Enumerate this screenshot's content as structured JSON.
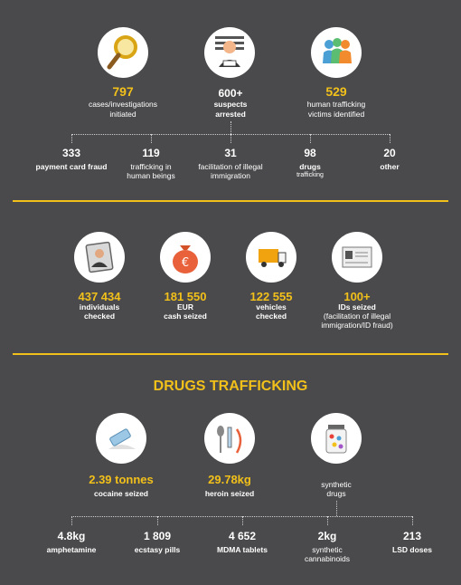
{
  "section1": {
    "stats": [
      {
        "value": "797",
        "label1": "cases/investigations",
        "label2": "initiated",
        "icon": "magnifier-icon"
      },
      {
        "value": "600+",
        "label1": "suspects",
        "label2": "arrested",
        "icon": "arrested-suspect-icon"
      },
      {
        "value": "529",
        "label1": "human trafficking",
        "label2": "victims identified",
        "icon": "victims-group-icon"
      }
    ],
    "breakdown": [
      {
        "value": "333",
        "label1": "payment card fraud",
        "label2": ""
      },
      {
        "value": "119",
        "label1": "trafficking in",
        "label2": "human beings"
      },
      {
        "value": "31",
        "label1": "facilitation of illegal",
        "label2": "immigration"
      },
      {
        "value": "98",
        "label1": "drugs",
        "label2": "trafficking"
      },
      {
        "value": "20",
        "label1": "other",
        "label2": ""
      }
    ]
  },
  "section2": {
    "stats": [
      {
        "value": "437 434",
        "label1": "individuals",
        "label2": "checked",
        "label3": "",
        "icon": "id-card-icon"
      },
      {
        "value": "181 550",
        "label1": "EUR",
        "label2": "cash seized",
        "label3": "",
        "icon": "money-bag-icon"
      },
      {
        "value": "122 555",
        "label1": "vehicles",
        "label2": "checked",
        "label3": "",
        "icon": "truck-icon"
      },
      {
        "value": "100+",
        "label1": "IDs seized",
        "label2": "(facilitation of illegal",
        "label3": "immigration/ID fraud)",
        "icon": "document-icon"
      }
    ]
  },
  "section3": {
    "title": "DRUGS TRAFFICKING",
    "stats": [
      {
        "value": "2.39 tonnes",
        "label1": "cocaine seized",
        "label2": "",
        "icon": "razor-powder-icon"
      },
      {
        "value": "29.78kg",
        "label1": "heroin seized",
        "label2": "",
        "icon": "spoon-syringe-icon"
      },
      {
        "value": "",
        "label1": "synthetic",
        "label2": "drugs",
        "icon": "pill-jar-icon"
      }
    ],
    "breakdown": [
      {
        "value": "4.8kg",
        "label1": "amphetamine",
        "label2": ""
      },
      {
        "value": "1 809",
        "label1": "ecstasy pills",
        "label2": ""
      },
      {
        "value": "4 652",
        "label1": "MDMA tablets",
        "label2": ""
      },
      {
        "value": "2kg",
        "label1": "synthetic",
        "label2": "cannabinoids"
      },
      {
        "value": "213",
        "label1": "LSD doses",
        "label2": ""
      }
    ]
  },
  "colors": {
    "background": "#4a4a4c",
    "accent": "#f2c01a",
    "text": "#ffffff"
  }
}
